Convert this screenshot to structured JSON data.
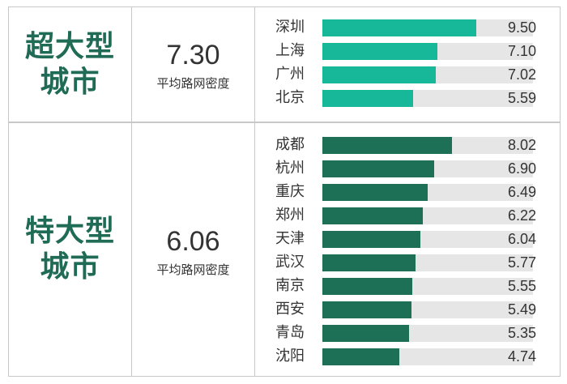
{
  "colors": {
    "super_bar": "#17b89a",
    "mega_bar": "#1d6f56",
    "track": "#e6e6e6",
    "group_text": "#1f6b55"
  },
  "chart_data": [
    {
      "type": "bar",
      "orientation": "horizontal",
      "group_name": "超大型城市",
      "group_lines": [
        "超大型",
        "城市"
      ],
      "average_value": "7.30",
      "average_label": "平均路网密度",
      "categories": [
        "深圳",
        "上海",
        "广州",
        "北京"
      ],
      "values": [
        9.5,
        7.1,
        7.02,
        5.59
      ],
      "value_labels": [
        "9.50",
        "7.10",
        "7.02",
        "5.59"
      ],
      "xlim": [
        0,
        10
      ]
    },
    {
      "type": "bar",
      "orientation": "horizontal",
      "group_name": "特大型城市",
      "group_lines": [
        "特大型",
        "城市"
      ],
      "average_value": "6.06",
      "average_label": "平均路网密度",
      "categories": [
        "成都",
        "杭州",
        "重庆",
        "郑州",
        "天津",
        "武汉",
        "南京",
        "西安",
        "青岛",
        "沈阳"
      ],
      "values": [
        8.02,
        6.9,
        6.49,
        6.22,
        6.04,
        5.77,
        5.55,
        5.49,
        5.35,
        4.74
      ],
      "value_labels": [
        "8.02",
        "6.90",
        "6.49",
        "6.22",
        "6.04",
        "5.77",
        "5.55",
        "5.49",
        "5.35",
        "4.74"
      ],
      "xlim": [
        0,
        10
      ]
    }
  ]
}
